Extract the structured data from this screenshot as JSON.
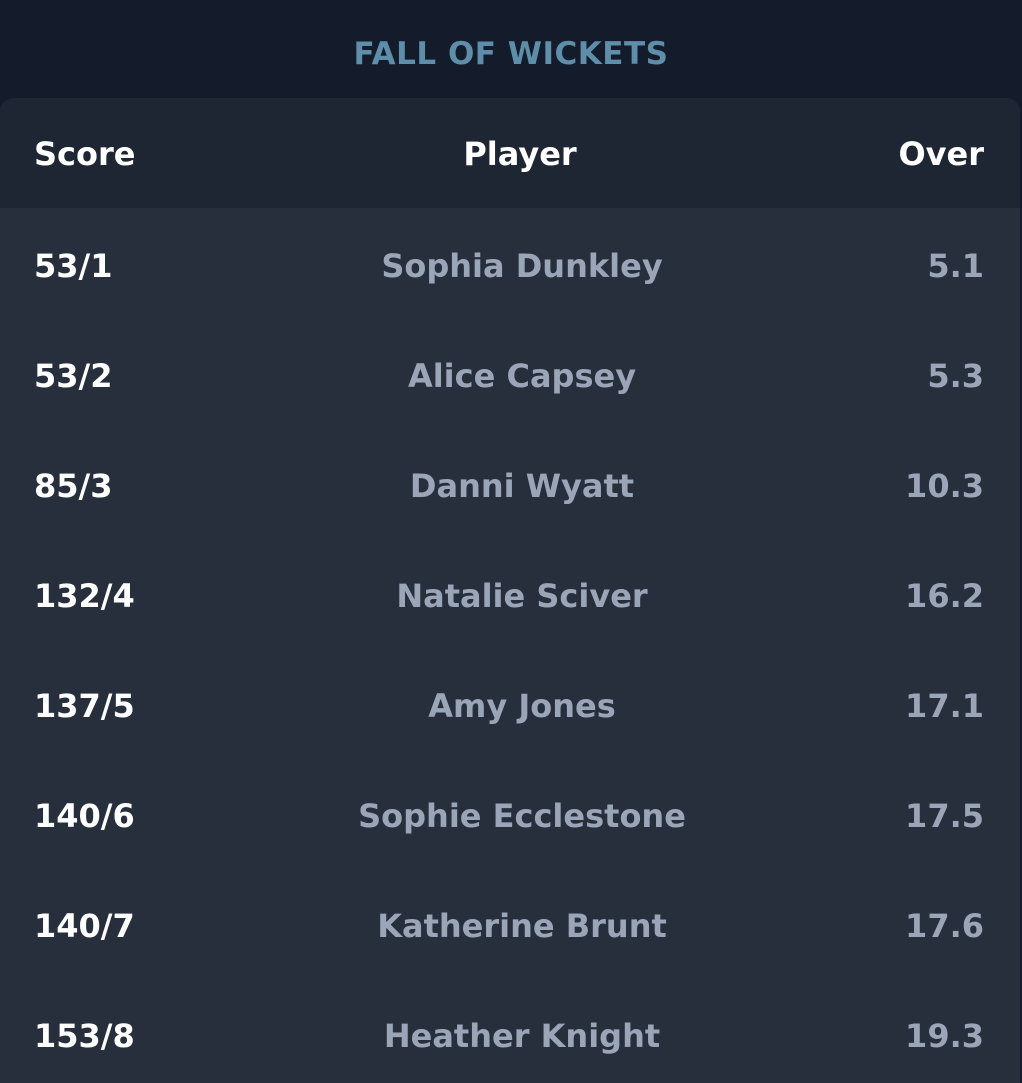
{
  "title": "FALL OF WICKETS",
  "columns": {
    "score": "Score",
    "player": "Player",
    "over": "Over"
  },
  "rows": [
    {
      "score": "53/1",
      "player": "Sophia Dunkley",
      "over": "5.1"
    },
    {
      "score": "53/2",
      "player": "Alice Capsey",
      "over": "5.3"
    },
    {
      "score": "85/3",
      "player": "Danni Wyatt",
      "over": "10.3"
    },
    {
      "score": "132/4",
      "player": "Natalie Sciver",
      "over": "16.2"
    },
    {
      "score": "137/5",
      "player": "Amy Jones",
      "over": "17.1"
    },
    {
      "score": "140/6",
      "player": "Sophie Ecclestone",
      "over": "17.5"
    },
    {
      "score": "140/7",
      "player": "Katherine Brunt",
      "over": "17.6"
    },
    {
      "score": "153/8",
      "player": "Heather Knight",
      "over": "19.3"
    }
  ],
  "colors": {
    "background": "#141c2b",
    "title": "#5e8eaa",
    "table": "#272f3d",
    "header": "#1f2633",
    "primary_text": "#ffffff",
    "secondary_text": "#9ba5b8"
  }
}
